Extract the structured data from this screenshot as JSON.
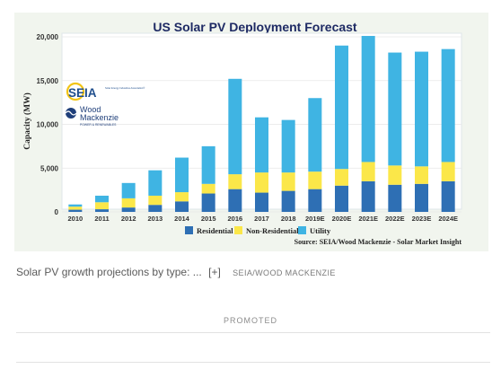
{
  "chart_data": {
    "type": "bar",
    "stacked": true,
    "title": "US Solar PV Deployment Forecast",
    "ylabel": "Capacity (MW)",
    "xlabel": "",
    "ylim": [
      0,
      20000
    ],
    "yticks": [
      "0",
      "5,000",
      "10,000",
      "15,000",
      "20,000"
    ],
    "ytick_values": [
      0,
      5000,
      10000,
      15000,
      20000
    ],
    "grid": true,
    "legend": "bottom",
    "categories": [
      "2010",
      "2011",
      "2012",
      "2013",
      "2014",
      "2015",
      "2016",
      "2017",
      "2018",
      "2019E",
      "2020E",
      "2021E",
      "2022E",
      "2023E",
      "2024E"
    ],
    "series": [
      {
        "name": "Residential",
        "color": "#2e6fb4",
        "values": [
          250,
          300,
          500,
          800,
          1200,
          2100,
          2600,
          2200,
          2400,
          2600,
          3000,
          3500,
          3100,
          3200,
          3500
        ]
      },
      {
        "name": "Non-Residential",
        "color": "#fbe749",
        "values": [
          350,
          800,
          1050,
          1050,
          1050,
          1100,
          1700,
          2300,
          2100,
          2000,
          1900,
          2200,
          2200,
          2000,
          2200
        ]
      },
      {
        "name": "Utility",
        "color": "#3fb4e3",
        "values": [
          250,
          750,
          1750,
          2900,
          3950,
          4300,
          10900,
          6300,
          6000,
          8400,
          14100,
          14400,
          12900,
          13100,
          12900
        ]
      }
    ],
    "source": "Source: SEIA/Wood Mackenzie - Solar Market Insight",
    "logos": [
      {
        "name": "SEIA",
        "tagline": "Solar Energy Industries Association®"
      },
      {
        "name": "Wood Mackenzie",
        "tagline": "POWER & RENEWABLES"
      }
    ]
  },
  "caption": {
    "text": "Solar PV growth projections by type: ...",
    "more": "[+]",
    "credit": "SEIA/WOOD MACKENZIE"
  },
  "promoted_label": "PROMOTED"
}
